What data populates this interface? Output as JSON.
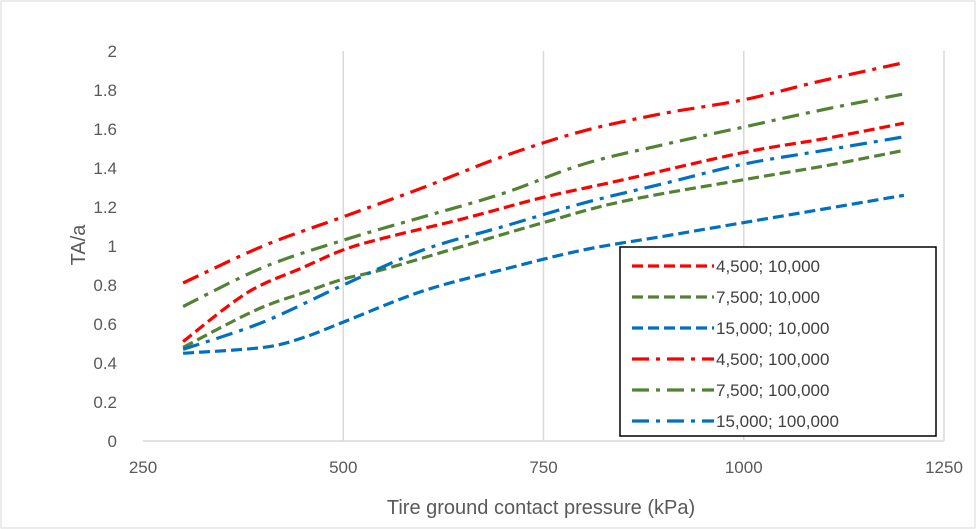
{
  "chart_data": {
    "type": "line",
    "title": "",
    "xlabel": "Tire ground contact pressure (kPa)",
    "ylabel": "TA/a",
    "xlim": [
      250,
      1250
    ],
    "ylim": [
      0,
      2
    ],
    "x_ticks": [
      "250",
      "500",
      "750",
      "1000",
      "1250"
    ],
    "y_ticks": [
      "0",
      "0.2",
      "0.4",
      "0.6",
      "0.8",
      "1",
      "1.2",
      "1.4",
      "1.6",
      "1.8",
      "2"
    ],
    "grid": "vertical-major",
    "legend_position": "bottom-right",
    "series": [
      {
        "name": "4,500; 10,000",
        "color": "#ff0000",
        "dash": "dash",
        "x": [
          300,
          380,
          450,
          500,
          550,
          650,
          750,
          850,
          1000,
          1100,
          1200
        ],
        "y": [
          0.51,
          0.76,
          0.89,
          0.98,
          1.04,
          1.14,
          1.25,
          1.34,
          1.48,
          1.55,
          1.63
        ]
      },
      {
        "name": "7,500; 10,000",
        "color": "#548235",
        "dash": "dash",
        "x": [
          300,
          390,
          450,
          500,
          550,
          650,
          750,
          850,
          1000,
          1100,
          1200
        ],
        "y": [
          0.48,
          0.67,
          0.76,
          0.83,
          0.88,
          1.0,
          1.12,
          1.23,
          1.34,
          1.41,
          1.49
        ]
      },
      {
        "name": "15,000; 10,000",
        "color": "#0070c0",
        "dash": "dash",
        "x": [
          300,
          400,
          450,
          500,
          600,
          700,
          800,
          900,
          1000,
          1100,
          1200
        ],
        "y": [
          0.45,
          0.48,
          0.53,
          0.61,
          0.77,
          0.88,
          0.98,
          1.05,
          1.12,
          1.19,
          1.26
        ]
      },
      {
        "name": "4,500; 100,000",
        "color": "#ff0000",
        "dash": "dashdot",
        "x": [
          300,
          400,
          500,
          600,
          700,
          800,
          900,
          1000,
          1100,
          1200
        ],
        "y": [
          0.81,
          1.0,
          1.15,
          1.3,
          1.46,
          1.59,
          1.68,
          1.75,
          1.85,
          1.94
        ]
      },
      {
        "name": "7,500; 100,000",
        "color": "#548235",
        "dash": "dashdot",
        "x": [
          300,
          400,
          500,
          600,
          700,
          800,
          900,
          1000,
          1100,
          1200
        ],
        "y": [
          0.69,
          0.89,
          1.03,
          1.15,
          1.27,
          1.42,
          1.52,
          1.61,
          1.7,
          1.78
        ]
      },
      {
        "name": "15,000; 100,000",
        "color": "#0070c0",
        "dash": "dashdot",
        "x": [
          300,
          400,
          500,
          600,
          700,
          800,
          900,
          1000,
          1100,
          1200
        ],
        "y": [
          0.47,
          0.61,
          0.8,
          0.98,
          1.1,
          1.22,
          1.32,
          1.42,
          1.49,
          1.56
        ]
      }
    ]
  }
}
